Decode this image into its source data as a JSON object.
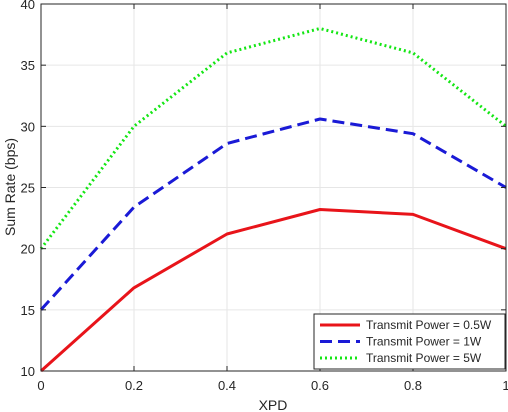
{
  "chart_data": {
    "type": "line",
    "title": "",
    "xlabel": "XPD",
    "ylabel": "Sum Rate (bps)",
    "x": [
      0,
      0.2,
      0.4,
      0.6,
      0.8,
      1
    ],
    "xlim": [
      0,
      1
    ],
    "ylim": [
      10,
      40
    ],
    "xticks": [
      "0",
      "0.2",
      "0.4",
      "0.6",
      "0.8",
      "1"
    ],
    "yticks": [
      "10",
      "15",
      "20",
      "25",
      "30",
      "35",
      "40"
    ],
    "grid": true,
    "legend_position": "bottom-right",
    "series": [
      {
        "name": "Transmit Power = 0.5W",
        "values": [
          10,
          16.8,
          21.2,
          23.2,
          22.8,
          20
        ],
        "color": "#e8141a",
        "style": "solid"
      },
      {
        "name": "Transmit Power = 1W",
        "values": [
          15,
          23.4,
          28.6,
          30.6,
          29.4,
          25
        ],
        "color": "#1a1ad6",
        "style": "dashed"
      },
      {
        "name": "Transmit Power = 5W",
        "values": [
          20,
          30,
          36,
          38,
          36,
          30
        ],
        "color": "#14e614",
        "style": "dotted"
      }
    ]
  }
}
